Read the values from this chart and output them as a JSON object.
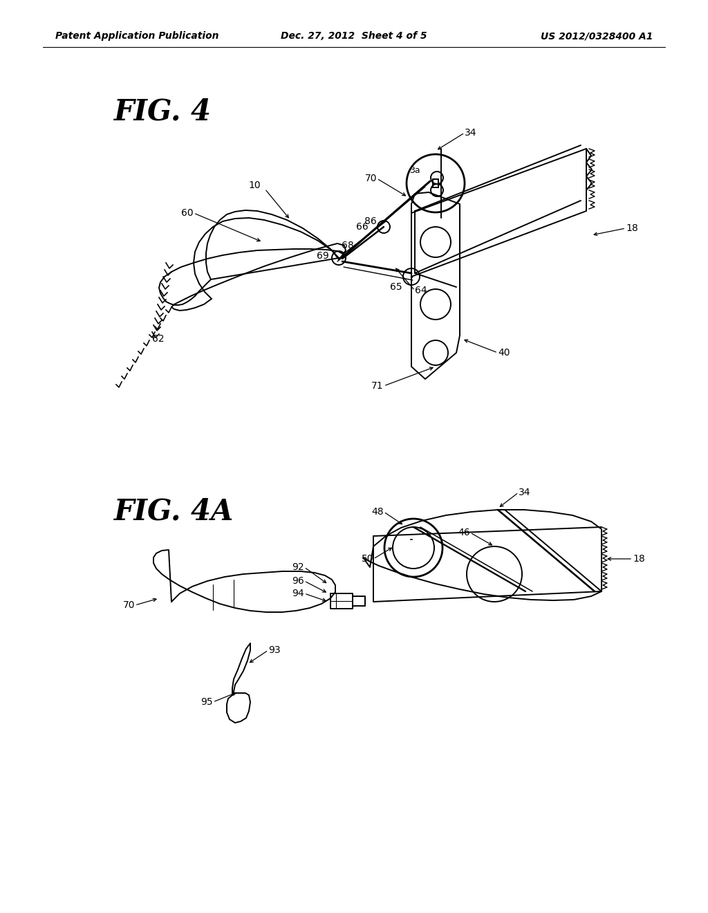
{
  "background_color": "#ffffff",
  "header_left": "Patent Application Publication",
  "header_center": "Dec. 27, 2012  Sheet 4 of 5",
  "header_right": "US 2012/0328400 A1",
  "header_fontsize": 10,
  "fig4_title": "FIG. 4",
  "fig4a_title": "FIG. 4A",
  "title_fontsize": 30,
  "label_fontsize": 10,
  "line_color": "#000000",
  "line_width": 1.4
}
